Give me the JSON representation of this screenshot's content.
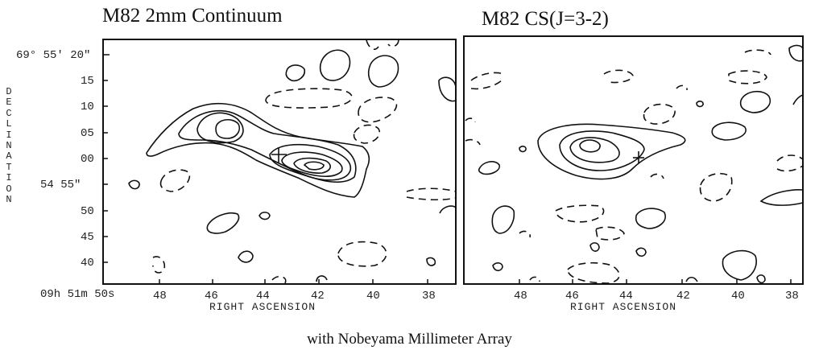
{
  "caption": "with Nobeyama Millimeter Array",
  "panels": [
    {
      "title": "M82 2mm Continuum"
    },
    {
      "title": "M82 CS(J=3-2)"
    }
  ],
  "y_axis": {
    "label": "DECLINATION",
    "ticks": [
      "69° 55′ 20″",
      "15",
      "10",
      "05",
      "00",
      "54 55″",
      "50",
      "45",
      "40"
    ],
    "origin_label": "09h 51m 50s"
  },
  "x_axis": {
    "label": "RIGHT ASCENSION",
    "left_ticks": [
      "48",
      "46",
      "44",
      "42",
      "40",
      "38"
    ],
    "right_ticks": [
      "48",
      "46",
      "44",
      "42",
      "40",
      "38"
    ]
  }
}
